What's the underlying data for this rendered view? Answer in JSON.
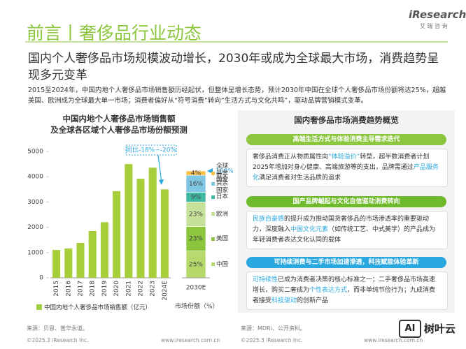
{
  "header": {
    "title": "前言丨奢侈品行业动态",
    "logo": "iResearch",
    "logo_sub": "艾 瑞 咨 询"
  },
  "headline": "国内个人奢侈品市场规模波动增长，2030年或成为全球最大市场，消费趋势呈现多元变革",
  "summary": "2015至2024年，中国内地个人奢侈品市场销售额历经起伏，但整体呈增长态势，预计2030年中国在全球个人奢侈品市场份额将达25%，超越美国、欧洲成为全球最大单一市场；消费者偏好从“符号消费”转向“生活方式与文化共鸣”，驱动品牌营销模式变革。",
  "chart_data": [
    {
      "type": "bar",
      "title": [
        "中国内地个人奢侈品市场销售额",
        "及全球各区域个人奢侈品市场份额预测"
      ],
      "categories": [
        "2015",
        "2016",
        "2017",
        "2018",
        "2019",
        "2020",
        "2021",
        "2022",
        "2023",
        "2024E"
      ],
      "series": [
        {
          "name": "中国内地个人奢侈品市场销售额（亿元）",
          "color": "#a6ce39",
          "values": [
            1100,
            1160,
            1380,
            1850,
            2200,
            3430,
            4500,
            3920,
            4360,
            3500
          ]
        }
      ],
      "ylim": [
        0,
        5000
      ],
      "yticks": [
        0,
        1000,
        2000,
        3000,
        4000,
        5000
      ],
      "grid": false,
      "annotation": "同比-18%~-20%"
    },
    {
      "type": "stacked_bar",
      "categories": [
        "2030E"
      ],
      "xlabel": "市场份额（%）",
      "ylim": [
        0,
        100
      ],
      "series": [
        {
          "name": "中国",
          "color": "#b5d96a",
          "values": [
            25
          ],
          "value_labels": [
            "25%"
          ]
        },
        {
          "name": "美国",
          "color": "#8cc63f",
          "values": [
            23
          ],
          "value_labels": [
            "23%"
          ]
        },
        {
          "name": "欧洲",
          "color": "#c5e19a",
          "values": [
            23
          ],
          "value_labels": [
            "23%"
          ]
        },
        {
          "name": "日本",
          "color": "#3fb9a2",
          "values": [
            9
          ],
          "value_labels": [
            "9%"
          ]
        },
        {
          "name": "亚太其余国家",
          "color": "#7ec8e3",
          "values": [
            16
          ],
          "value_labels": [
            "16%"
          ]
        },
        {
          "name": "全球其余国家",
          "color": "#f7c04a",
          "values": [
            4
          ],
          "value_labels": [
            "4%"
          ]
        }
      ],
      "total": {
        "value": 100,
        "label": "100%"
      }
    }
  ],
  "chart_source": "来源：贝恩、普华永道。",
  "panel": {
    "title": "国内奢侈品市场消费趋势概览",
    "source": "来源：MDRi、公开资料。",
    "sections": [
      {
        "header": "高端生活方式与体验消费主导需求迭代",
        "color": "#8cc63f",
        "body": [
          {
            "text": "奢侈品消费正从物质属性向",
            "highlight": false
          },
          {
            "text": "“体验溢价”",
            "highlight": true
          },
          {
            "text": "转型，超半数消费者计划2025年增加对身心健康、高端旅游等的支出，品牌需通过",
            "highlight": false
          },
          {
            "text": "产品服务化",
            "highlight": true
          },
          {
            "text": "满足消费者对生活品质的追求",
            "highlight": false
          }
        ]
      },
      {
        "header": "国产品牌崛起与文化自信驱动消费转向",
        "color": "#6fba2c",
        "body": [
          {
            "text": "民族自豪感",
            "highlight": true
          },
          {
            "text": "的提升成为推动国货奢侈品的市场渗透率的重要驱动力，深度融入",
            "highlight": false
          },
          {
            "text": "中国文化元素",
            "highlight": true
          },
          {
            "text": "（如传统工艺、中式美学）的产品成为年轻消费者表达文化认同的载体",
            "highlight": false
          }
        ]
      },
      {
        "header": "可持续消费与二手市场加速渗透，科技赋能体验革新",
        "color": "#29a8df",
        "body": [
          {
            "text": "可持续性",
            "highlight": true
          },
          {
            "text": "已成为消费者决策的核心标准之一；二手奢侈品市场高速增长，购买二奢成为",
            "highlight": false
          },
          {
            "text": "个性表达方式",
            "highlight": true
          },
          {
            "text": "，而非单纯节俭行为；九成消费者接受",
            "highlight": false
          },
          {
            "text": "科技驱动",
            "highlight": true
          },
          {
            "text": "的创新产品",
            "highlight": false
          }
        ]
      }
    ]
  },
  "footer": {
    "copyright": [
      "©2025.3 iResearch Inc.",
      "©2025.3 iResearch Inc."
    ],
    "url": [
      "www.iresearch.com.cn",
      "www.iresearch.com.cn"
    ]
  },
  "watermark": {
    "badge": "AI",
    "text": "树叶云"
  }
}
